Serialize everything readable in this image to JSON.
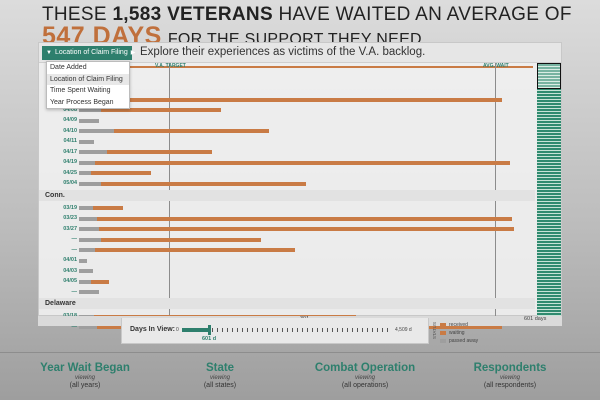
{
  "headline": {
    "line1_prefix": "THESE ",
    "line1_count": "1,583 VETERANS",
    "line1_suffix": " HAVE WAITED AN AVERAGE OF",
    "line2_days": "547 DAYS",
    "line2_rest": "FOR THE SUPPORT THEY NEED."
  },
  "toolbar": {
    "sort_label": "Location of Claim Filing",
    "explore_text": "Explore their experiences as victims of the V.A. backlog."
  },
  "sort_options": [
    "Date Added",
    "Location of Claim Filing",
    "Time Spent Waiting",
    "Year Process Began"
  ],
  "reference_lines": {
    "va_target_label": "V.A. TARGET",
    "avg_wait_label": "AVG. WAIT"
  },
  "groups": [
    {
      "state": "",
      "rows": [
        {
          "label": "",
          "grey": 18,
          "orange": 0
        },
        {
          "label": "",
          "grey": 10,
          "orange": 40
        },
        {
          "label": "",
          "grey": 8,
          "orange": 415
        },
        {
          "label": "04/08",
          "grey": 22,
          "orange": 120
        },
        {
          "label": "04/09",
          "grey": 20,
          "orange": 0
        },
        {
          "label": "04/10",
          "grey": 35,
          "orange": 155
        },
        {
          "label": "04/11",
          "grey": 15,
          "orange": 0
        },
        {
          "label": "04/17",
          "grey": 28,
          "orange": 105
        },
        {
          "label": "04/19",
          "grey": 16,
          "orange": 415
        },
        {
          "label": "04/25",
          "grey": 12,
          "orange": 60
        },
        {
          "label": "05/04",
          "grey": 22,
          "orange": 205
        }
      ]
    },
    {
      "state": "Conn.",
      "rows": [
        {
          "label": "03/19",
          "grey": 14,
          "orange": 30
        },
        {
          "label": "03/23",
          "grey": 18,
          "orange": 415
        },
        {
          "label": "03/27",
          "grey": 20,
          "orange": 415
        },
        {
          "label": "—",
          "grey": 22,
          "orange": 160
        },
        {
          "label": "—",
          "grey": 16,
          "orange": 200
        },
        {
          "label": "04/01",
          "grey": 8,
          "orange": 0
        },
        {
          "label": "04/03",
          "grey": 14,
          "orange": 0
        },
        {
          "label": "04/05",
          "grey": 12,
          "orange": 18
        },
        {
          "label": "—",
          "grey": 20,
          "orange": 0
        }
      ]
    },
    {
      "state": "Delaware",
      "rows": [
        {
          "label": "03/18",
          "grey": 15,
          "orange": 262
        },
        {
          "label": "—",
          "grey": 18,
          "orange": 405
        }
      ]
    }
  ],
  "bottom_axis": {
    "tick_mid": "301",
    "tick_end": "601 days"
  },
  "controls": {
    "label": "Days In View:",
    "min": "0",
    "value": "601 d",
    "max": "4,509 d"
  },
  "legend": {
    "title": "STATUS",
    "items": [
      {
        "label": "received",
        "color": "#c97b45"
      },
      {
        "label": "waiting",
        "color": "#c97b45"
      },
      {
        "label": "passed away",
        "color": "#9e9e9e"
      }
    ]
  },
  "filters": [
    {
      "title": "Year Wait Began",
      "viewing": "viewing",
      "value": "(all years)"
    },
    {
      "title": "State",
      "viewing": "viewing",
      "value": "(all states)"
    },
    {
      "title": "Combat Operation",
      "viewing": "viewing",
      "value": "(all operations)"
    },
    {
      "title": "Respondents",
      "viewing": "viewing",
      "value": "(all respondents)"
    }
  ],
  "colors": {
    "accent": "#2e7f6d",
    "bar_orange": "#c97b45",
    "bar_grey": "#9e9e9e"
  }
}
